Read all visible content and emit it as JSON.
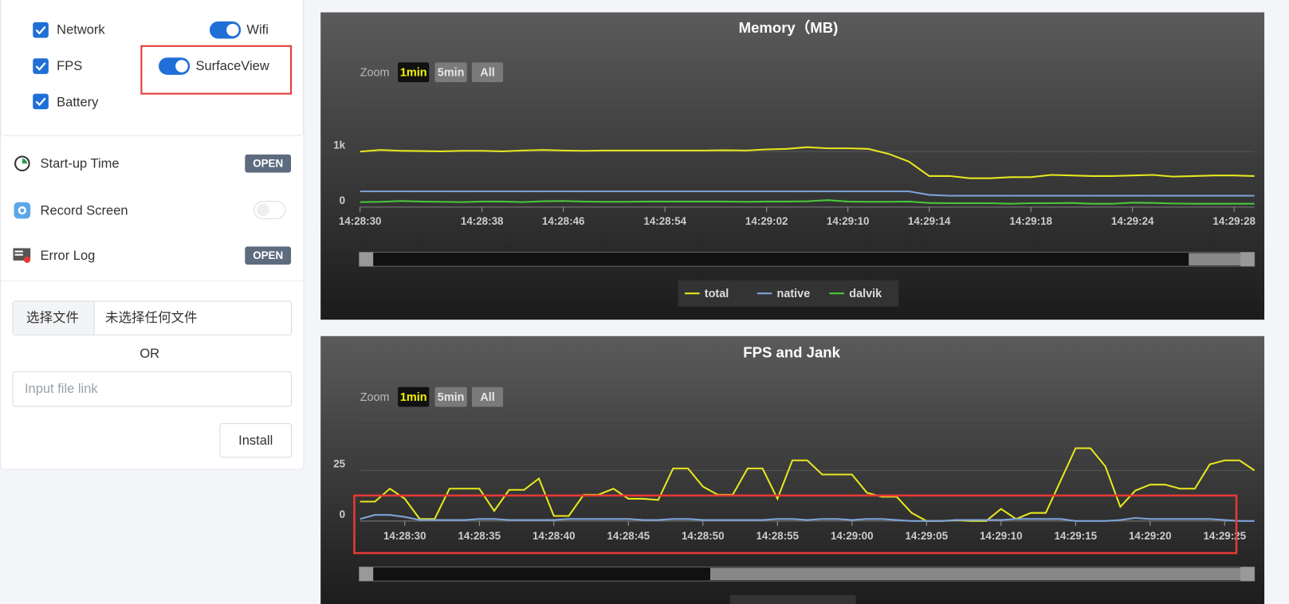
{
  "sidebar": {
    "checkboxes": [
      "Network",
      "FPS",
      "Battery"
    ],
    "toggles": [
      "Wifi",
      "SurfaceView"
    ],
    "tools": [
      {
        "label": "Start-up Time",
        "button": "OPEN"
      },
      {
        "label": "Record Screen"
      },
      {
        "label": "Error Log",
        "button": "OPEN"
      }
    ],
    "file_button": "选择文件",
    "file_status": "未选择任何文件",
    "or": "OR",
    "link_placeholder": "Input file link",
    "install": "Install"
  },
  "chart_data": [
    {
      "type": "line",
      "title": "Memory（MB)",
      "range_selector": {
        "label": "Zoom",
        "buttons": [
          "1min",
          "5min",
          "All"
        ]
      },
      "categories": [
        "14:28:30",
        null,
        null,
        null,
        null,
        null,
        "14:28:38",
        null,
        null,
        null,
        "14:28:46",
        null,
        null,
        null,
        null,
        "14:28:54",
        null,
        null,
        null,
        null,
        "14:29:02",
        null,
        null,
        null,
        "14:29:10",
        null,
        null,
        null,
        "14:29:14",
        null,
        null,
        null,
        null,
        "14:29:18",
        null,
        null,
        null,
        null,
        "14:29:24",
        null,
        null,
        null,
        null,
        "14:29:28",
        null
      ],
      "ylim": [
        0,
        2000
      ],
      "yticks": [
        0,
        {
          "value": 1000,
          "label": "1k"
        }
      ],
      "grid": true,
      "series": [
        {
          "name": "total",
          "color": "#e6e61e",
          "values": [
            1000,
            1030,
            1015,
            1010,
            1005,
            1015,
            1015,
            1005,
            1020,
            1030,
            1020,
            1015,
            1020,
            1020,
            1020,
            1020,
            1020,
            1020,
            1025,
            1020,
            1040,
            1050,
            1080,
            1060,
            1060,
            1050,
            960,
            820,
            560,
            560,
            520,
            520,
            540,
            540,
            580,
            570,
            560,
            560,
            570,
            580,
            550,
            560,
            570,
            570,
            560
          ]
        },
        {
          "name": "native",
          "color": "#7fa3d8",
          "values": [
            284,
            284,
            284,
            284,
            284,
            284,
            284,
            284,
            284,
            284,
            284,
            284,
            284,
            284,
            284,
            284,
            284,
            284,
            284,
            284,
            284,
            284,
            284,
            284,
            284,
            284,
            284,
            284,
            220,
            205,
            205,
            205,
            205,
            205,
            205,
            205,
            205,
            205,
            205,
            205,
            205,
            205,
            205,
            205,
            205
          ]
        },
        {
          "name": "dalvik",
          "color": "#48c83a",
          "values": [
            90,
            95,
            110,
            100,
            95,
            90,
            100,
            100,
            90,
            105,
            110,
            100,
            95,
            95,
            100,
            100,
            100,
            100,
            100,
            95,
            100,
            100,
            105,
            125,
            100,
            95,
            95,
            100,
            75,
            70,
            70,
            70,
            60,
            70,
            70,
            75,
            60,
            60,
            80,
            75,
            65,
            60,
            60,
            60,
            60
          ]
        }
      ]
    },
    {
      "type": "line",
      "title": "FPS and Jank",
      "range_selector": {
        "label": "Zoom",
        "buttons": [
          "1min",
          "5min",
          "All"
        ]
      },
      "categories": [
        null,
        null,
        null,
        "14:28:30",
        null,
        null,
        null,
        null,
        "14:28:35",
        null,
        null,
        null,
        null,
        "14:28:40",
        null,
        null,
        null,
        null,
        "14:28:45",
        null,
        null,
        null,
        null,
        "14:28:50",
        null,
        null,
        null,
        null,
        "14:28:55",
        null,
        null,
        null,
        null,
        "14:29:00",
        null,
        null,
        null,
        null,
        "14:29:05",
        null,
        null,
        null,
        null,
        "14:29:10",
        null,
        null,
        null,
        null,
        "14:29:15",
        null,
        null,
        null,
        null,
        "14:29:20",
        null,
        null,
        null,
        null,
        "14:29:25",
        null,
        null
      ],
      "ylim": [
        0,
        50
      ],
      "yticks": [
        0,
        25
      ],
      "grid": true,
      "series": [
        {
          "color": "#e6e61e",
          "values": [
            9.6,
            9.6,
            16,
            11,
            1,
            1,
            16,
            16,
            16,
            5,
            15.4,
            15.4,
            21,
            2.5,
            2.5,
            13,
            13,
            16,
            11,
            11,
            10.4,
            26,
            26,
            17,
            13,
            13,
            26,
            26,
            11,
            30,
            30,
            23,
            23,
            23,
            14,
            12,
            12,
            4,
            0,
            0,
            0.4,
            0,
            0,
            6,
            1,
            4,
            4,
            20,
            36,
            36,
            27,
            7,
            15,
            18,
            18,
            16,
            16,
            28,
            30,
            30,
            25
          ]
        },
        {
          "color": "#7fa3d8",
          "values": [
            1,
            3,
            3,
            2,
            0.5,
            0.5,
            0.5,
            0.5,
            1,
            1,
            0.5,
            0.5,
            0.5,
            0.5,
            1,
            1,
            1,
            1,
            1,
            0.5,
            0.5,
            1,
            1,
            0.5,
            0.5,
            0.5,
            0.5,
            0.5,
            1,
            1,
            0.5,
            1,
            1,
            0.5,
            1,
            1,
            0.5,
            0,
            0,
            0,
            0.5,
            0.5,
            0.5,
            0.5,
            1,
            1,
            1,
            1,
            0,
            0,
            0,
            0.5,
            1.5,
            1,
            1,
            1,
            1,
            1,
            0.5,
            0,
            0
          ]
        }
      ]
    }
  ]
}
